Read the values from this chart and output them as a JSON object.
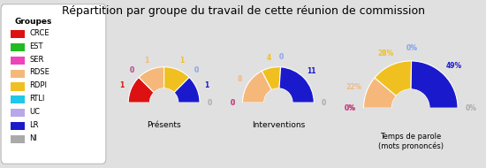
{
  "title": "Répartition par groupe du travail de cette réunion de commission",
  "background_color": "#e0e0e0",
  "legend_title": "Groupes",
  "groups": [
    "CRCE",
    "EST",
    "SER",
    "RDSE",
    "RDPI",
    "RTLI",
    "UC",
    "LR",
    "NI"
  ],
  "colors": [
    "#dd1111",
    "#22bb22",
    "#ee44bb",
    "#f5b87a",
    "#f0c020",
    "#20c8e8",
    "#b8a8e8",
    "#1a1acc",
    "#aaaaaa"
  ],
  "presents": [
    1,
    0,
    0,
    1,
    1,
    0,
    0,
    1,
    0
  ],
  "interventions": [
    0,
    0,
    0,
    8,
    4,
    0,
    0,
    11,
    0
  ],
  "temps_parole_pct": [
    0,
    0,
    0,
    22,
    28,
    0,
    0,
    49,
    0
  ],
  "chart_titles": [
    "Présents",
    "Interventions",
    "Temps de parole\n(mots prononcés)"
  ],
  "add_pct": [
    false,
    false,
    true
  ]
}
